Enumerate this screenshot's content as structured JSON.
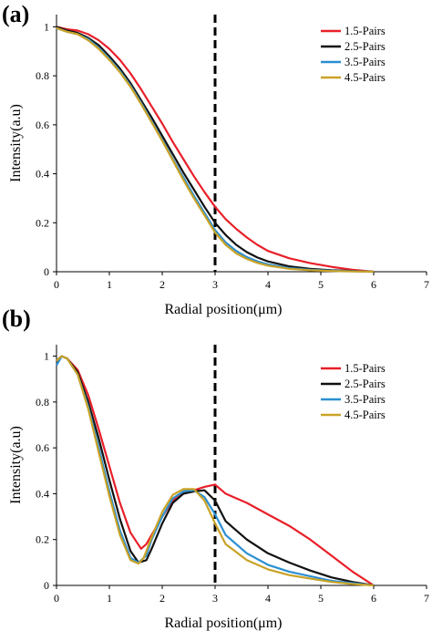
{
  "chart_data": [
    {
      "panel_label": "(a)",
      "type": "line",
      "xlabel": "Radial position(μm)",
      "ylabel": "Intensity(a.u)",
      "xlim": [
        0,
        7
      ],
      "ylim": [
        0,
        1.05
      ],
      "xticks": [
        "0",
        "1",
        "2",
        "3",
        "4",
        "5",
        "6",
        "7"
      ],
      "yticks": [
        "0",
        "0.2",
        "0.4",
        "0.6",
        "0.8",
        "1"
      ],
      "legend_position": "top-right",
      "vline_x": 3,
      "series": [
        {
          "name": "1.5-Pairs",
          "color": "#e8202a",
          "x": [
            0,
            0.2,
            0.4,
            0.6,
            0.8,
            1.0,
            1.2,
            1.4,
            1.6,
            1.8,
            2.0,
            2.2,
            2.4,
            2.6,
            2.8,
            3.0,
            3.2,
            3.4,
            3.6,
            3.8,
            4.0,
            4.4,
            4.8,
            5.2,
            5.6,
            6.0
          ],
          "y": [
            1.0,
            0.99,
            0.985,
            0.97,
            0.945,
            0.91,
            0.865,
            0.81,
            0.745,
            0.675,
            0.605,
            0.53,
            0.46,
            0.39,
            0.325,
            0.265,
            0.215,
            0.175,
            0.14,
            0.11,
            0.085,
            0.055,
            0.035,
            0.02,
            0.008,
            0.0
          ]
        },
        {
          "name": "2.5-Pairs",
          "color": "#111111",
          "x": [
            0,
            0.2,
            0.4,
            0.6,
            0.8,
            1.0,
            1.2,
            1.4,
            1.6,
            1.8,
            2.0,
            2.2,
            2.4,
            2.6,
            2.8,
            3.0,
            3.2,
            3.4,
            3.6,
            3.8,
            4.0,
            4.4,
            4.8,
            5.2,
            5.6,
            6.0
          ],
          "y": [
            1.0,
            0.985,
            0.975,
            0.955,
            0.925,
            0.88,
            0.83,
            0.77,
            0.7,
            0.63,
            0.555,
            0.48,
            0.405,
            0.335,
            0.265,
            0.2,
            0.15,
            0.11,
            0.08,
            0.058,
            0.042,
            0.022,
            0.012,
            0.006,
            0.003,
            0.0
          ]
        },
        {
          "name": "3.5-Pairs",
          "color": "#2b8fd1",
          "x": [
            0,
            0.2,
            0.4,
            0.6,
            0.8,
            1.0,
            1.2,
            1.4,
            1.6,
            1.8,
            2.0,
            2.2,
            2.4,
            2.6,
            2.8,
            3.0,
            3.2,
            3.4,
            3.6,
            3.8,
            4.0,
            4.4,
            4.8,
            5.2,
            5.6,
            6.0
          ],
          "y": [
            0.995,
            0.98,
            0.97,
            0.95,
            0.915,
            0.87,
            0.82,
            0.76,
            0.69,
            0.615,
            0.54,
            0.46,
            0.385,
            0.31,
            0.24,
            0.17,
            0.12,
            0.085,
            0.06,
            0.042,
            0.03,
            0.015,
            0.008,
            0.004,
            0.002,
            0.0
          ]
        },
        {
          "name": "4.5-Pairs",
          "color": "#c9a227",
          "x": [
            0,
            0.2,
            0.4,
            0.6,
            0.8,
            1.0,
            1.2,
            1.4,
            1.6,
            1.8,
            2.0,
            2.2,
            2.4,
            2.6,
            2.8,
            3.0,
            3.2,
            3.4,
            3.6,
            3.8,
            4.0,
            4.4,
            4.8,
            5.2,
            5.6,
            6.0
          ],
          "y": [
            0.995,
            0.98,
            0.97,
            0.945,
            0.91,
            0.865,
            0.815,
            0.755,
            0.685,
            0.61,
            0.535,
            0.455,
            0.375,
            0.3,
            0.23,
            0.16,
            0.11,
            0.075,
            0.052,
            0.036,
            0.025,
            0.012,
            0.006,
            0.003,
            0.001,
            0.0
          ]
        }
      ]
    },
    {
      "panel_label": "(b)",
      "type": "line",
      "xlabel": "Radial position(μm)",
      "ylabel": "Intensity(a.u)",
      "xlim": [
        0,
        7
      ],
      "ylim": [
        0,
        1.05
      ],
      "xticks": [
        "0",
        "1",
        "2",
        "3",
        "4",
        "5",
        "6",
        "7"
      ],
      "yticks": [
        "0",
        "0.2",
        "0.4",
        "0.6",
        "0.8",
        "1"
      ],
      "legend_position": "top-right",
      "vline_x": 3,
      "series": [
        {
          "name": "1.5-Pairs",
          "color": "#e8202a",
          "x": [
            0,
            0.1,
            0.2,
            0.4,
            0.6,
            0.8,
            1.0,
            1.2,
            1.4,
            1.6,
            1.7,
            1.8,
            2.0,
            2.2,
            2.4,
            2.6,
            2.8,
            3.0,
            3.2,
            3.6,
            4.0,
            4.4,
            4.8,
            5.2,
            5.6,
            6.0
          ],
          "y": [
            0.98,
            1.0,
            0.99,
            0.94,
            0.83,
            0.68,
            0.52,
            0.36,
            0.23,
            0.16,
            0.18,
            0.22,
            0.3,
            0.37,
            0.4,
            0.415,
            0.43,
            0.44,
            0.4,
            0.36,
            0.31,
            0.26,
            0.2,
            0.13,
            0.06,
            0.0
          ]
        },
        {
          "name": "2.5-Pairs",
          "color": "#111111",
          "x": [
            0,
            0.1,
            0.2,
            0.4,
            0.6,
            0.8,
            1.0,
            1.2,
            1.4,
            1.55,
            1.7,
            1.8,
            2.0,
            2.2,
            2.4,
            2.6,
            2.8,
            3.0,
            3.2,
            3.6,
            4.0,
            4.4,
            4.8,
            5.2,
            5.6,
            6.0
          ],
          "y": [
            0.98,
            1.0,
            0.99,
            0.93,
            0.8,
            0.64,
            0.46,
            0.29,
            0.15,
            0.1,
            0.11,
            0.16,
            0.27,
            0.36,
            0.4,
            0.41,
            0.415,
            0.37,
            0.28,
            0.2,
            0.14,
            0.1,
            0.065,
            0.035,
            0.015,
            0.0
          ]
        },
        {
          "name": "3.5-Pairs",
          "color": "#2b8fd1",
          "x": [
            0,
            0.1,
            0.2,
            0.4,
            0.6,
            0.8,
            1.0,
            1.2,
            1.4,
            1.55,
            1.7,
            1.8,
            2.0,
            2.2,
            2.4,
            2.6,
            2.8,
            3.0,
            3.2,
            3.6,
            4.0,
            4.4,
            4.8,
            5.2,
            5.6,
            6.0
          ],
          "y": [
            0.96,
            1.0,
            0.99,
            0.92,
            0.78,
            0.6,
            0.41,
            0.24,
            0.12,
            0.1,
            0.13,
            0.2,
            0.3,
            0.38,
            0.41,
            0.415,
            0.385,
            0.31,
            0.22,
            0.14,
            0.09,
            0.06,
            0.04,
            0.02,
            0.01,
            0.0
          ]
        },
        {
          "name": "4.5-Pairs",
          "color": "#c9a227",
          "x": [
            0,
            0.1,
            0.2,
            0.4,
            0.6,
            0.8,
            1.0,
            1.2,
            1.4,
            1.55,
            1.65,
            1.8,
            2.0,
            2.2,
            2.4,
            2.6,
            2.8,
            3.0,
            3.2,
            3.6,
            4.0,
            4.4,
            4.8,
            5.2,
            5.6,
            6.0
          ],
          "y": [
            0.98,
            1.0,
            0.99,
            0.92,
            0.77,
            0.58,
            0.39,
            0.22,
            0.11,
            0.095,
            0.12,
            0.21,
            0.32,
            0.395,
            0.42,
            0.42,
            0.37,
            0.27,
            0.18,
            0.11,
            0.07,
            0.045,
            0.03,
            0.015,
            0.006,
            0.0
          ]
        }
      ]
    }
  ]
}
